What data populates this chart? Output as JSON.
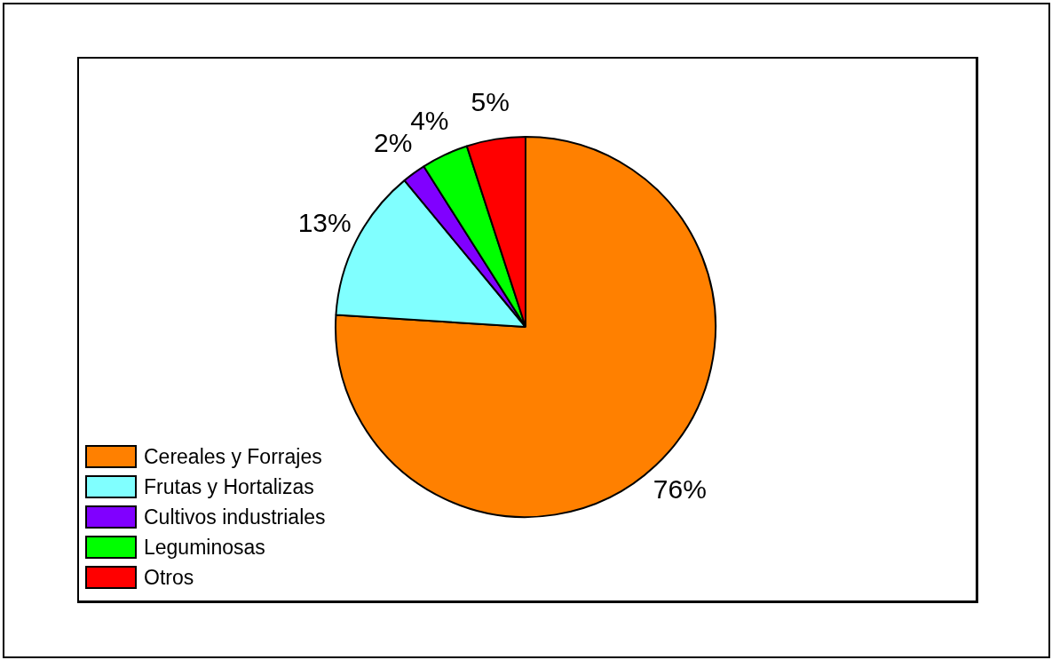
{
  "chart_data": {
    "type": "pie",
    "categories": [
      "Cereales y Forrajes",
      "Frutas y Hortalizas",
      "Cultivos industriales",
      "Leguminosas",
      "Otros"
    ],
    "values": [
      76,
      13,
      2,
      4,
      5
    ],
    "colors": [
      "#ff8000",
      "#80ffff",
      "#8000ff",
      "#00ff00",
      "#ff0000"
    ],
    "value_labels": [
      "76%",
      "13%",
      "2%",
      "4%",
      "5%"
    ],
    "legend": "bottom left"
  }
}
